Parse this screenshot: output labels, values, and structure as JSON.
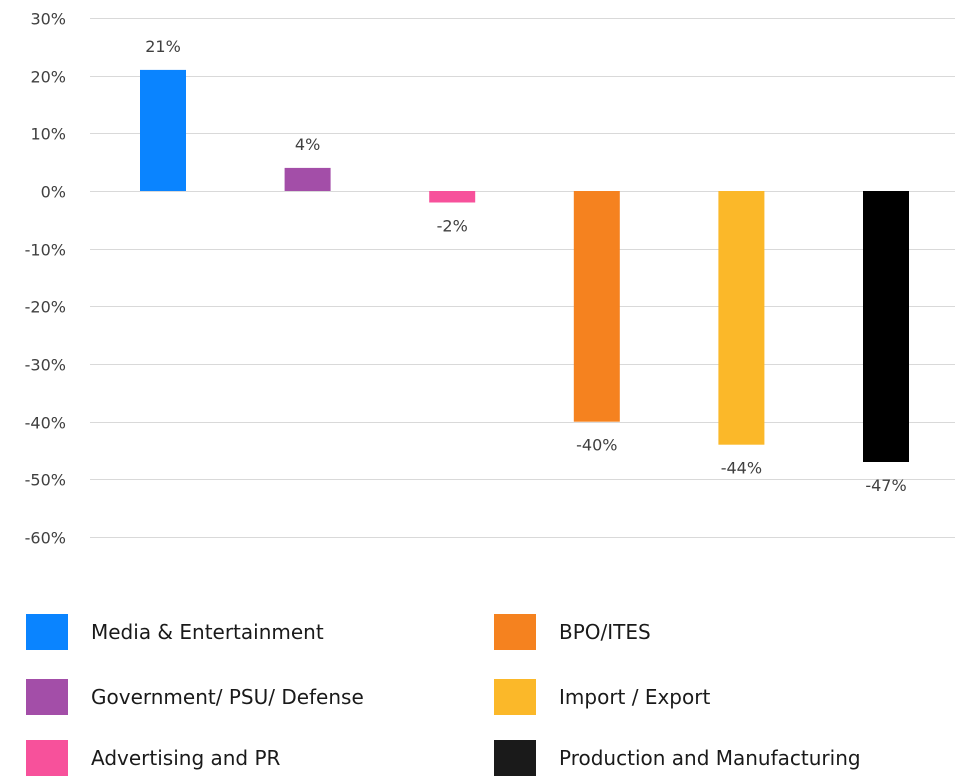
{
  "chart_data": {
    "type": "bar",
    "title": "",
    "xlabel": "",
    "ylabel": "",
    "ylim": [
      -0.6,
      0.3
    ],
    "ytick_values": [
      0.3,
      0.2,
      0.1,
      0,
      -0.1,
      -0.2,
      -0.3,
      -0.4,
      -0.5,
      -0.6
    ],
    "ytick_labels": [
      "30%",
      "20%",
      "10%",
      "0%",
      "-10%",
      "-20%",
      "-30%",
      "-40%",
      "-50%",
      "-60%"
    ],
    "grid": true,
    "legend_position": "bottom",
    "categories": [
      "Media & Entertainment",
      "Government/ PSU/ Defense",
      "Advertising and PR",
      "BPO/ITES",
      "Import / Export",
      "Production and Manufacturing"
    ],
    "values": [
      0.21,
      0.04,
      -0.02,
      -0.4,
      -0.44,
      -0.47
    ],
    "value_labels": [
      "21%",
      "4%",
      "-2%",
      "-40%",
      "-44%",
      "-47%"
    ],
    "colors": [
      "#0a84ff",
      "#a34ea8",
      "#f7519b",
      "#f5821f",
      "#fbb829",
      "#000000"
    ],
    "legend_swatch_colors": [
      "#0a84ff",
      "#a34ea8",
      "#f7519b",
      "#f5821f",
      "#fbb829",
      "#1a1a1a"
    ]
  }
}
